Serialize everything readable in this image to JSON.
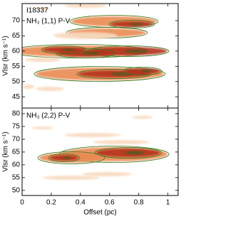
{
  "chart_data": [
    {
      "type": "pv",
      "source": "I18337",
      "title": "NH₃ (1,1) P-V",
      "ylabel": "Vlsr (km s⁻¹)",
      "xlim": [
        0,
        1.07
      ],
      "xticks": [
        0,
        0.2,
        0.4,
        0.6,
        0.8,
        1
      ],
      "ylim": [
        41.3,
        75.6
      ],
      "yticks": [
        45,
        50,
        55,
        60,
        65,
        70
      ]
    },
    {
      "type": "pv",
      "title": "NH₃ (2,2) P-V",
      "ylabel": "Vlsr (km s⁻¹)",
      "xlabel": "Offset (pc)",
      "xlim": [
        0,
        1.07
      ],
      "xticks": [
        0,
        0.2,
        0.4,
        0.6,
        0.8,
        1
      ],
      "ylim": [
        48,
        82.2
      ],
      "yticks": [
        50,
        55,
        60,
        65,
        70,
        75,
        80
      ]
    }
  ]
}
